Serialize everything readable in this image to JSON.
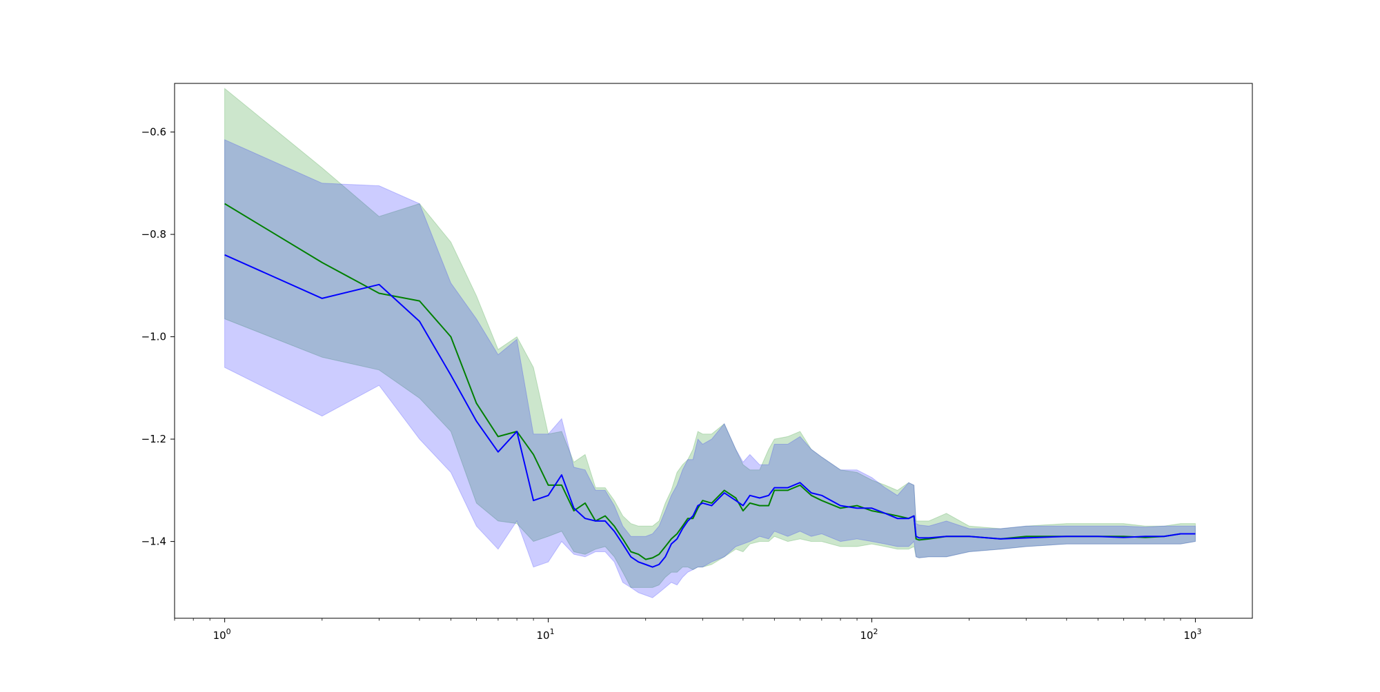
{
  "chart_data": {
    "type": "line",
    "title": "",
    "xlabel": "",
    "ylabel": "",
    "xscale": "log",
    "xlim": [
      0.7,
      1500
    ],
    "ylim": [
      -1.55,
      -0.505
    ],
    "grid": false,
    "legend": "none",
    "x_ticks": [
      {
        "value": 1,
        "base": "10",
        "exp": "0"
      },
      {
        "value": 10,
        "base": "10",
        "exp": "1"
      },
      {
        "value": 100,
        "base": "10",
        "exp": "2"
      },
      {
        "value": 1000,
        "base": "10",
        "exp": "3"
      }
    ],
    "y_ticks": [
      {
        "value": -0.6,
        "label": "−0.6"
      },
      {
        "value": -0.8,
        "label": "−0.8"
      },
      {
        "value": -1.0,
        "label": "−1.0"
      },
      {
        "value": -1.2,
        "label": "−1.2"
      },
      {
        "value": -1.4,
        "label": "−1.4"
      }
    ],
    "series": [
      {
        "color": "#008000",
        "band_color": "#008000",
        "band_opacity": 0.2,
        "x": [
          1,
          2,
          3,
          4,
          5,
          6,
          7,
          8,
          9,
          10,
          11,
          12,
          13,
          14,
          15,
          16,
          17,
          18,
          19,
          20,
          21,
          22,
          23,
          24,
          25,
          26,
          27,
          28,
          29,
          30,
          32,
          35,
          38,
          40,
          42,
          45,
          48,
          50,
          55,
          60,
          65,
          70,
          80,
          90,
          100,
          110,
          120,
          130,
          135,
          137,
          140,
          150,
          170,
          200,
          250,
          300,
          400,
          500,
          600,
          700,
          800,
          900,
          1000
        ],
        "y": [
          -0.74,
          -0.855,
          -0.915,
          -0.93,
          -1.0,
          -1.13,
          -1.195,
          -1.185,
          -1.23,
          -1.29,
          -1.29,
          -1.34,
          -1.325,
          -1.36,
          -1.35,
          -1.37,
          -1.395,
          -1.42,
          -1.425,
          -1.435,
          -1.432,
          -1.425,
          -1.41,
          -1.395,
          -1.385,
          -1.37,
          -1.355,
          -1.355,
          -1.335,
          -1.32,
          -1.325,
          -1.3,
          -1.315,
          -1.34,
          -1.325,
          -1.33,
          -1.33,
          -1.3,
          -1.3,
          -1.29,
          -1.31,
          -1.32,
          -1.335,
          -1.33,
          -1.34,
          -1.345,
          -1.35,
          -1.355,
          -1.35,
          -1.395,
          -1.397,
          -1.395,
          -1.39,
          -1.39,
          -1.395,
          -1.39,
          -1.39,
          -1.39,
          -1.39,
          -1.392,
          -1.39,
          -1.385,
          -1.385
        ],
        "upper": [
          -0.515,
          -0.67,
          -0.765,
          -0.74,
          -0.815,
          -0.92,
          -1.025,
          -1.0,
          -1.06,
          -1.19,
          -1.185,
          -1.245,
          -1.23,
          -1.295,
          -1.295,
          -1.32,
          -1.35,
          -1.365,
          -1.37,
          -1.37,
          -1.37,
          -1.36,
          -1.325,
          -1.3,
          -1.265,
          -1.25,
          -1.24,
          -1.22,
          -1.185,
          -1.19,
          -1.19,
          -1.17,
          -1.22,
          -1.25,
          -1.26,
          -1.26,
          -1.22,
          -1.2,
          -1.195,
          -1.185,
          -1.22,
          -1.235,
          -1.26,
          -1.265,
          -1.28,
          -1.29,
          -1.3,
          -1.285,
          -1.29,
          -1.36,
          -1.36,
          -1.36,
          -1.345,
          -1.37,
          -1.375,
          -1.37,
          -1.365,
          -1.365,
          -1.365,
          -1.37,
          -1.37,
          -1.365,
          -1.365
        ],
        "lower": [
          -0.965,
          -1.04,
          -1.065,
          -1.12,
          -1.185,
          -1.325,
          -1.36,
          -1.365,
          -1.4,
          -1.39,
          -1.38,
          -1.42,
          -1.425,
          -1.415,
          -1.41,
          -1.43,
          -1.46,
          -1.49,
          -1.49,
          -1.49,
          -1.49,
          -1.485,
          -1.47,
          -1.46,
          -1.46,
          -1.45,
          -1.45,
          -1.455,
          -1.45,
          -1.45,
          -1.445,
          -1.43,
          -1.415,
          -1.42,
          -1.405,
          -1.4,
          -1.4,
          -1.39,
          -1.4,
          -1.395,
          -1.4,
          -1.4,
          -1.41,
          -1.41,
          -1.405,
          -1.41,
          -1.415,
          -1.415,
          -1.41,
          -1.43,
          -1.432,
          -1.43,
          -1.43,
          -1.42,
          -1.415,
          -1.41,
          -1.405,
          -1.405,
          -1.405,
          -1.405,
          -1.405,
          -1.405,
          -1.4
        ]
      },
      {
        "color": "#0000ff",
        "band_color": "#0000ff",
        "band_opacity": 0.2,
        "x": [
          1,
          2,
          3,
          4,
          5,
          6,
          7,
          8,
          9,
          10,
          11,
          12,
          13,
          14,
          15,
          16,
          17,
          18,
          19,
          20,
          21,
          22,
          23,
          24,
          25,
          26,
          27,
          28,
          29,
          30,
          32,
          35,
          38,
          40,
          42,
          45,
          48,
          50,
          55,
          60,
          65,
          70,
          80,
          90,
          100,
          110,
          120,
          130,
          135,
          137,
          140,
          150,
          170,
          200,
          250,
          300,
          400,
          500,
          600,
          700,
          800,
          900,
          1000
        ],
        "y": [
          -0.84,
          -0.925,
          -0.898,
          -0.97,
          -1.075,
          -1.165,
          -1.225,
          -1.185,
          -1.32,
          -1.31,
          -1.27,
          -1.335,
          -1.355,
          -1.36,
          -1.36,
          -1.38,
          -1.405,
          -1.43,
          -1.44,
          -1.445,
          -1.45,
          -1.445,
          -1.43,
          -1.405,
          -1.395,
          -1.375,
          -1.36,
          -1.35,
          -1.33,
          -1.325,
          -1.33,
          -1.305,
          -1.32,
          -1.33,
          -1.31,
          -1.315,
          -1.31,
          -1.295,
          -1.295,
          -1.285,
          -1.305,
          -1.31,
          -1.33,
          -1.335,
          -1.335,
          -1.345,
          -1.355,
          -1.355,
          -1.35,
          -1.39,
          -1.393,
          -1.393,
          -1.39,
          -1.39,
          -1.395,
          -1.393,
          -1.39,
          -1.39,
          -1.392,
          -1.39,
          -1.39,
          -1.385,
          -1.385
        ],
        "upper": [
          -0.615,
          -0.7,
          -0.705,
          -0.74,
          -0.895,
          -0.965,
          -1.035,
          -1.005,
          -1.19,
          -1.19,
          -1.16,
          -1.255,
          -1.26,
          -1.3,
          -1.3,
          -1.33,
          -1.37,
          -1.39,
          -1.39,
          -1.39,
          -1.385,
          -1.37,
          -1.34,
          -1.31,
          -1.29,
          -1.26,
          -1.24,
          -1.24,
          -1.2,
          -1.21,
          -1.2,
          -1.17,
          -1.22,
          -1.245,
          -1.23,
          -1.25,
          -1.25,
          -1.21,
          -1.21,
          -1.195,
          -1.22,
          -1.235,
          -1.26,
          -1.26,
          -1.275,
          -1.295,
          -1.31,
          -1.285,
          -1.29,
          -1.365,
          -1.368,
          -1.37,
          -1.36,
          -1.375,
          -1.375,
          -1.37,
          -1.37,
          -1.37,
          -1.37,
          -1.372,
          -1.37,
          -1.37,
          -1.37
        ],
        "lower": [
          -1.06,
          -1.155,
          -1.095,
          -1.2,
          -1.265,
          -1.37,
          -1.415,
          -1.36,
          -1.45,
          -1.44,
          -1.4,
          -1.425,
          -1.43,
          -1.42,
          -1.42,
          -1.44,
          -1.48,
          -1.49,
          -1.5,
          -1.505,
          -1.51,
          -1.5,
          -1.49,
          -1.48,
          -1.485,
          -1.47,
          -1.46,
          -1.455,
          -1.45,
          -1.45,
          -1.44,
          -1.43,
          -1.41,
          -1.405,
          -1.4,
          -1.39,
          -1.395,
          -1.38,
          -1.39,
          -1.38,
          -1.39,
          -1.385,
          -1.4,
          -1.395,
          -1.4,
          -1.405,
          -1.41,
          -1.41,
          -1.4,
          -1.43,
          -1.432,
          -1.43,
          -1.43,
          -1.42,
          -1.415,
          -1.41,
          -1.405,
          -1.405,
          -1.405,
          -1.405,
          -1.405,
          -1.405,
          -1.4
        ]
      }
    ]
  }
}
